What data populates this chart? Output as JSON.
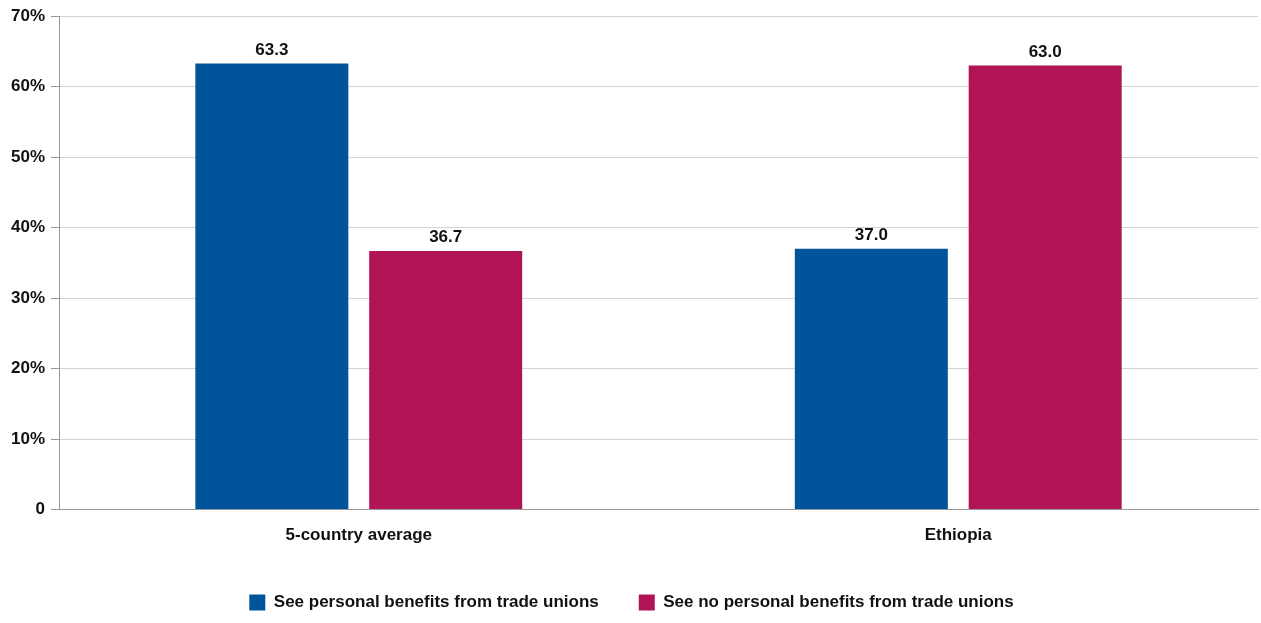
{
  "chart_data": {
    "type": "bar",
    "categories": [
      "5-country average",
      "Ethiopia"
    ],
    "series": [
      {
        "name": "See personal benefits from trade unions",
        "color": "#00559a",
        "values": [
          63.3,
          37.0
        ],
        "value_labels": [
          "63.3",
          "37.0"
        ]
      },
      {
        "name": "See no personal benefits from trade unions",
        "color": "#b01455",
        "values": [
          36.7,
          63.0
        ],
        "value_labels": [
          "36.7",
          "63.0"
        ]
      }
    ],
    "ylim": [
      0,
      70
    ],
    "yticks": [
      {
        "value": 0,
        "label": "0"
      },
      {
        "value": 10,
        "label": "10%"
      },
      {
        "value": 20,
        "label": "20%"
      },
      {
        "value": 30,
        "label": "30%"
      },
      {
        "value": 40,
        "label": "40%"
      },
      {
        "value": 50,
        "label": "50%"
      },
      {
        "value": 60,
        "label": "60%"
      },
      {
        "value": 70,
        "label": "70%"
      }
    ],
    "grid": "y",
    "legend": "bottom"
  }
}
